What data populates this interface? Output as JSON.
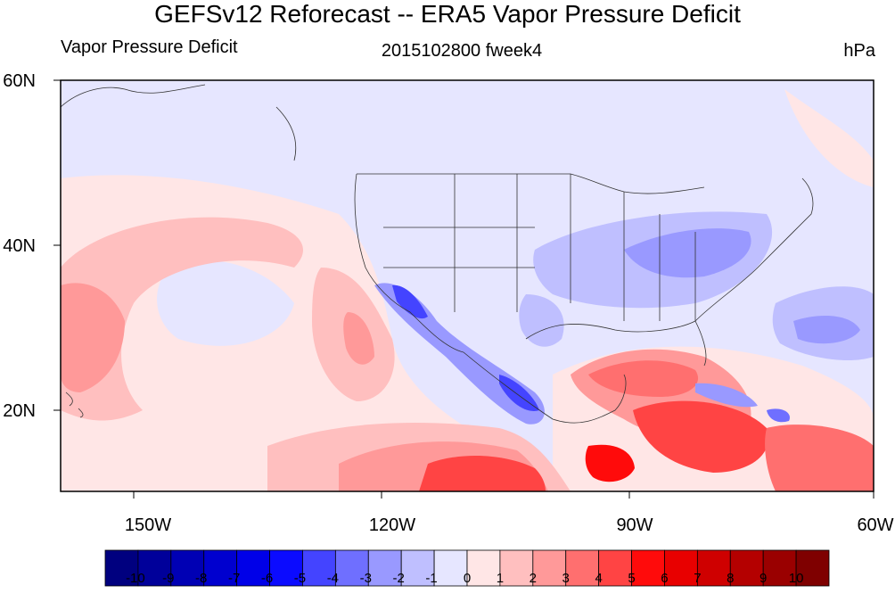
{
  "title": "GEFSv12 Reforecast -- ERA5 Vapor Pressure Deficit",
  "left_subtitle": "Vapor Pressure Deficit",
  "center_subtitle": "2015102800 fweek4",
  "right_subtitle": "hPa",
  "lat_labels": [
    "60N",
    "40N",
    "20N"
  ],
  "lon_labels": [
    "150W",
    "120W",
    "90W",
    "60W"
  ],
  "colorbar": {
    "labels": [
      "-10",
      "-9",
      "-8",
      "-7",
      "-6",
      "-5",
      "-4",
      "-3",
      "-2",
      "-1",
      "0",
      "1",
      "2",
      "3",
      "4",
      "5",
      "6",
      "7",
      "8",
      "9",
      "10"
    ],
    "colors": [
      "#00007f",
      "#00009a",
      "#0000b4",
      "#0000cf",
      "#0000e8",
      "#0b0bff",
      "#4444ff",
      "#6f6fff",
      "#9999ff",
      "#bfbfff",
      "#e6e6ff",
      "#ffe6e6",
      "#ffbfbf",
      "#ff9999",
      "#ff6f6f",
      "#ff4444",
      "#ff0b0b",
      "#e80000",
      "#cf0000",
      "#b40000",
      "#9a0000",
      "#7f0000"
    ]
  }
}
